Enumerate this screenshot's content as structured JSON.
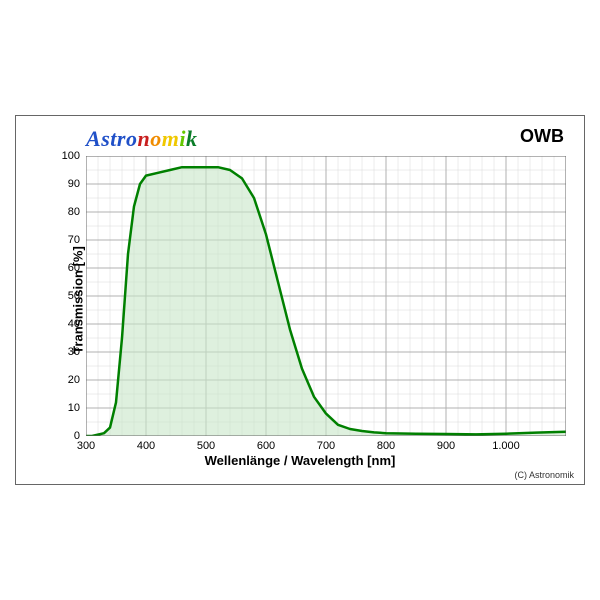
{
  "logo": {
    "text": "Astronomik",
    "letter_colors": [
      "#2050c8",
      "#2050c8",
      "#2050c8",
      "#2050c8",
      "#2050c8",
      "#c81e1e",
      "#f08c00",
      "#f0c800",
      "#64c800",
      "#0a7d28",
      "#6428a0"
    ]
  },
  "filter_label": "OWB",
  "copyright": "(C) Astronomik",
  "chart": {
    "type": "line",
    "xlabel": "Wellenlänge / Wavelength [nm]",
    "ylabel": "Transmission [%]",
    "xlim": [
      300,
      1100
    ],
    "ylim": [
      0,
      100
    ],
    "xtick_positions": [
      300,
      400,
      500,
      600,
      700,
      800,
      900,
      1000
    ],
    "xtick_labels": [
      "300",
      "400",
      "500",
      "600",
      "700",
      "800",
      "900",
      "1.000"
    ],
    "ytick_positions": [
      0,
      10,
      20,
      30,
      40,
      50,
      60,
      70,
      80,
      90,
      100
    ],
    "ytick_labels": [
      "0",
      "10",
      "20",
      "30",
      "40",
      "50",
      "60",
      "70",
      "80",
      "90",
      "100"
    ],
    "minor_grid_x_step": 20,
    "minor_grid_y_step": 5,
    "background_color": "#ffffff",
    "grid_color": "#b0b0b0",
    "grid_color_minor": "#d8d8d8",
    "frame_color": "#666666",
    "line_color": "#008000",
    "line_width": 2.5,
    "fill_color": "#c8e6c8",
    "fill_opacity": 0.6,
    "label_fontsize": 13,
    "tick_fontsize": 11,
    "series": {
      "x": [
        300,
        310,
        320,
        330,
        340,
        350,
        360,
        370,
        380,
        390,
        400,
        420,
        440,
        460,
        480,
        500,
        520,
        540,
        560,
        580,
        600,
        620,
        640,
        660,
        680,
        700,
        720,
        740,
        760,
        780,
        800,
        850,
        900,
        950,
        1000,
        1050,
        1100
      ],
      "y": [
        0,
        0,
        0.5,
        1,
        3,
        12,
        35,
        65,
        82,
        90,
        93,
        94,
        95,
        96,
        96,
        96,
        96,
        95,
        92,
        85,
        72,
        55,
        38,
        24,
        14,
        8,
        4,
        2.5,
        1.8,
        1.3,
        1,
        0.8,
        0.7,
        0.6,
        0.8,
        1.2,
        1.5
      ]
    }
  }
}
